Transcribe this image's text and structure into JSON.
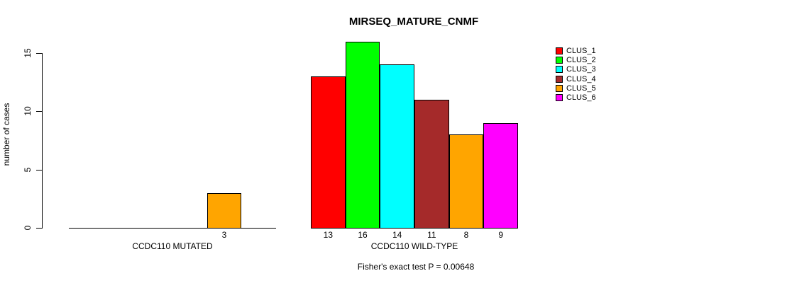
{
  "chart_data": {
    "type": "bar",
    "grouped": true,
    "title": "MIRSEQ_MATURE_CNMF",
    "xlabel": "",
    "ylabel": "number of cases",
    "annotation": "Fisher's exact test P = 0.00648",
    "categories": [
      "CCDC110 MUTATED",
      "CCDC110 WILD-TYPE"
    ],
    "series": [
      {
        "name": "CLUS_1",
        "color": "#FF0000",
        "values": [
          0,
          13
        ]
      },
      {
        "name": "CLUS_2",
        "color": "#00FF00",
        "values": [
          0,
          16
        ]
      },
      {
        "name": "CLUS_3",
        "color": "#00FFFF",
        "values": [
          0,
          14
        ]
      },
      {
        "name": "CLUS_4",
        "color": "#A52A2A",
        "values": [
          0,
          11
        ]
      },
      {
        "name": "CLUS_5",
        "color": "#FFA500",
        "values": [
          3,
          8
        ]
      },
      {
        "name": "CLUS_6",
        "color": "#FF00FF",
        "values": [
          0,
          9
        ]
      }
    ],
    "bar_value_labels": {
      "CCDC110 MUTATED": [
        "",
        "",
        "",
        "",
        "3",
        ""
      ],
      "CCDC110 WILD-TYPE": [
        "13",
        "16",
        "14",
        "11",
        "8",
        "9"
      ]
    },
    "yticks": [
      0,
      5,
      10,
      15
    ],
    "ylim": [
      0,
      16
    ],
    "grid": false,
    "legend_position": "right",
    "legend_entries": [
      "CLUS_1",
      "CLUS_2",
      "CLUS_3",
      "CLUS_4",
      "CLUS_5",
      "CLUS_6"
    ],
    "axis_color": "#000000",
    "text_color": "#000000",
    "background_color": "#FFFFFF"
  }
}
